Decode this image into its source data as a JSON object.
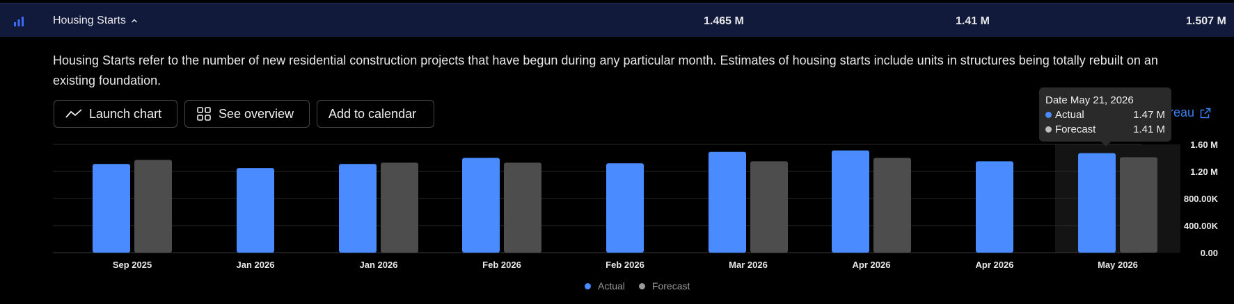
{
  "indicator": {
    "name": "Housing Starts",
    "values": [
      "1.465 M",
      "1.41 M",
      "1.507 M"
    ]
  },
  "description": "Housing Starts refer to the number of new residential construction projects that have begun during any particular month. Estimates of housing starts include units in structures being totally rebuilt on an existing foundation.",
  "buttons": {
    "launch_chart": "Launch chart",
    "see_overview": "See overview",
    "add_calendar": "Add to calendar"
  },
  "source_link": "reau",
  "tooltip": {
    "date": "Date May 21, 2026",
    "actual_label": "Actual",
    "actual_value": "1.47 M",
    "forecast_label": "Forecast",
    "forecast_value": "1.41 M"
  },
  "legend": {
    "actual": "Actual",
    "forecast": "Forecast"
  },
  "colors": {
    "actual": "#4a8cff",
    "forecast": "#4d4d4d",
    "accent": "#3b82f6"
  },
  "chart_data": {
    "type": "bar",
    "categories": [
      "Sep 2025",
      "Jan 2026",
      "Jan 2026",
      "Feb 2026",
      "Feb 2026",
      "Mar 2026",
      "Apr 2026",
      "Apr 2026",
      "May 2026"
    ],
    "series": [
      {
        "name": "Actual",
        "values": [
          1.31,
          1.25,
          1.31,
          1.4,
          1.32,
          1.49,
          1.51,
          1.35,
          1.47
        ]
      },
      {
        "name": "Forecast",
        "values": [
          1.37,
          null,
          1.33,
          1.33,
          null,
          1.35,
          1.4,
          null,
          1.41
        ]
      }
    ],
    "ytick_labels": [
      "0.00",
      "400.00K",
      "800.00K",
      "1.20 M",
      "1.60 M"
    ],
    "yticks": [
      0,
      0.4,
      0.8,
      1.2,
      1.6
    ],
    "ylim": [
      0,
      1.6
    ],
    "unit": "M",
    "highlighted_category_index": 8,
    "grid": true,
    "legend_position": "bottom"
  }
}
